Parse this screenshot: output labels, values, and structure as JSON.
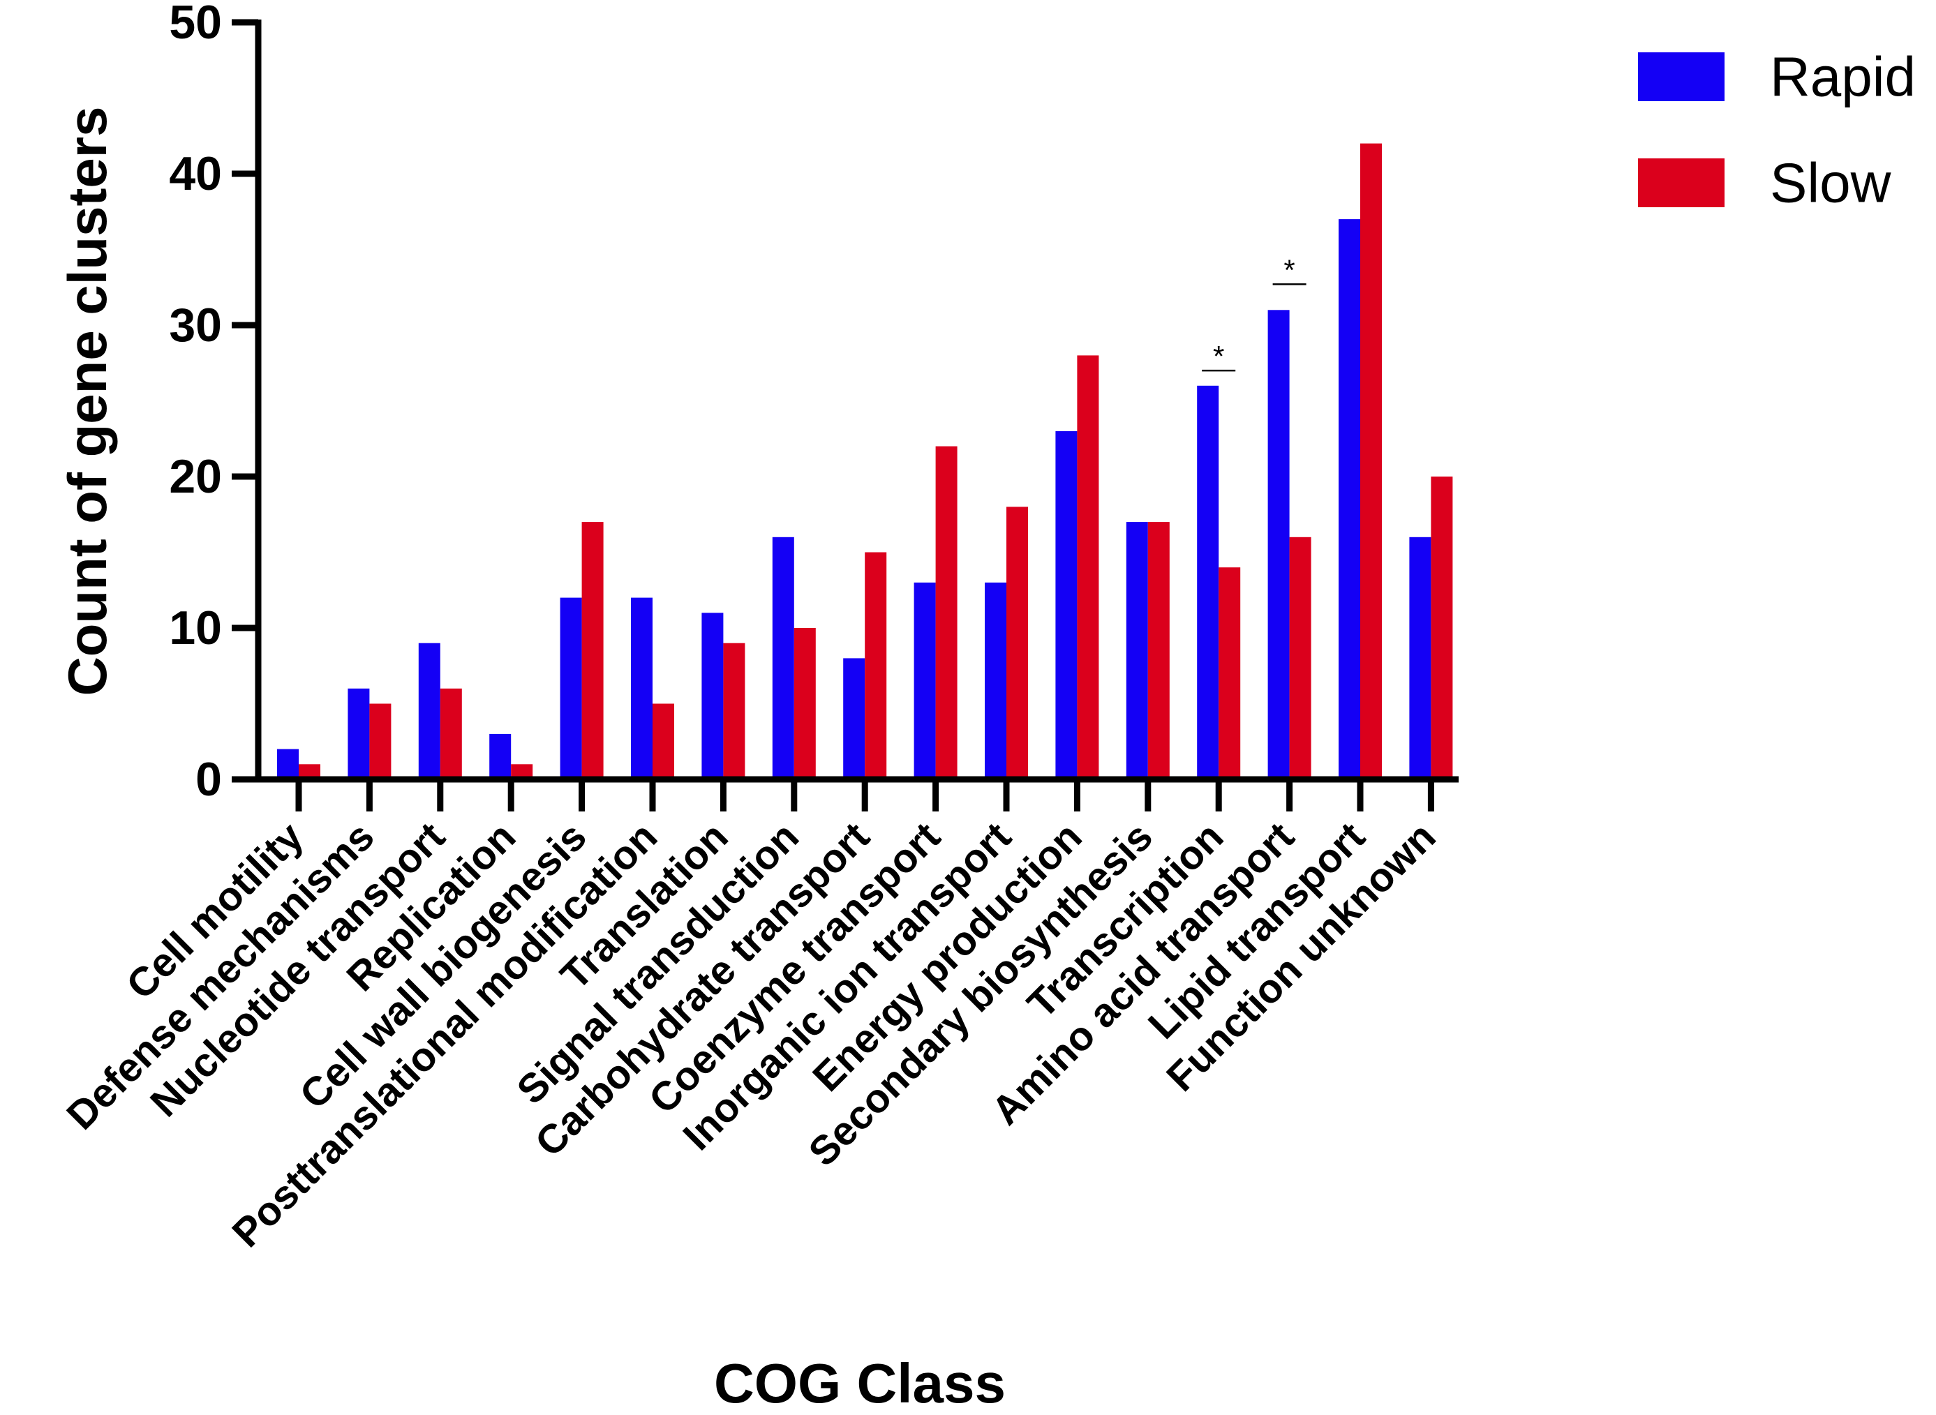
{
  "chart_data": {
    "type": "bar",
    "title": "",
    "xlabel": "COG Class",
    "ylabel": "Count of gene clusters",
    "ylim": [
      0,
      50
    ],
    "yticks": [
      0,
      10,
      20,
      30,
      40,
      50
    ],
    "grid": false,
    "legend_position": "top-right",
    "categories": [
      "Cell motility",
      "Defense mechanisms",
      "Nucleotide transport",
      "Replication",
      "Cell wall biogenesis",
      "Posttranslational modification",
      "Translation",
      "Signal transduction",
      "Carbohydrate transport",
      "Coenzyme transport",
      "Inorganic ion transport",
      "Energy production",
      "Secondary biosynthesis",
      "Transcription",
      "Amino acid transport",
      "Lipid transport",
      "Function unknown"
    ],
    "series": [
      {
        "name": "Rapid",
        "color": "#1400f5",
        "values": [
          2,
          6,
          9,
          3,
          12,
          12,
          11,
          16,
          8,
          13,
          13,
          23,
          17,
          26,
          31,
          37,
          16
        ]
      },
      {
        "name": "Slow",
        "color": "#db001c",
        "values": [
          1,
          5,
          6,
          1,
          17,
          5,
          9,
          10,
          15,
          22,
          18,
          28,
          17,
          14,
          16,
          42,
          20
        ]
      }
    ],
    "annotations": [
      {
        "category_index": 13,
        "text": "*",
        "value": 27
      },
      {
        "category_index": 14,
        "text": "*",
        "value": 32.7
      }
    ]
  }
}
